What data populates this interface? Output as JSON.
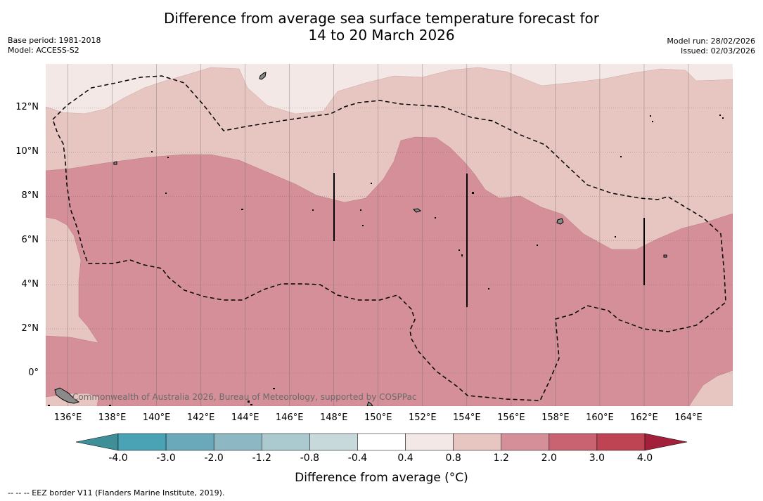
{
  "header": {
    "title_line1": "Difference from average sea surface temperature forecast for",
    "title_line2": "14 to 20 March 2026",
    "base_period": "Base period: 1981-2018",
    "model": "Model: ACCESS-S2",
    "model_run": "Model run: 28/02/2026",
    "issued": "Issued: 02/03/2026"
  },
  "map": {
    "lat_labels": [
      "12°N",
      "10°N",
      "8°N",
      "6°N",
      "4°N",
      "2°N",
      "0°"
    ],
    "lat_values": [
      12,
      10,
      8,
      6,
      4,
      2,
      0
    ],
    "lon_labels": [
      "136°E",
      "138°E",
      "140°E",
      "142°E",
      "144°E",
      "146°E",
      "148°E",
      "150°E",
      "152°E",
      "154°E",
      "156°E",
      "158°E",
      "160°E",
      "162°E",
      "164°E"
    ],
    "lon_values": [
      136,
      138,
      140,
      142,
      144,
      146,
      148,
      150,
      152,
      154,
      156,
      158,
      160,
      162,
      164
    ],
    "extent": {
      "lon_min": 135,
      "lon_max": 166,
      "lat_min": -1.5,
      "lat_max": 14
    },
    "copyright": "Commonwealth of Australia 2026, Bureau of Meteorology, supported by COSPPac",
    "colors": {
      "band_0_4_0_8": "#f4e8e7",
      "band_0_8_1_2": "#e7c5c1",
      "band_1_2_2_0": "#d58f98",
      "land": "#8a8a8a",
      "grid": "#666666"
    }
  },
  "colorbar": {
    "ticks": [
      "-4.0",
      "-3.0",
      "-2.0",
      "-1.2",
      "-0.8",
      "-0.4",
      "0.4",
      "0.8",
      "1.2",
      "2.0",
      "3.0",
      "4.0"
    ],
    "colors": [
      "#3f8f98",
      "#4aa3b4",
      "#6aa9ba",
      "#8cb7c3",
      "#aacacf",
      "#c8d9dc",
      "#ffffff",
      "#f4e8e7",
      "#e7c5c1",
      "#d58f98",
      "#c96271",
      "#be4453",
      "#a3203a"
    ],
    "title": "Difference from average (°C)"
  },
  "footnote": "--  --  -- EEZ border V11 (Flanders Marine Institute, 2019)."
}
